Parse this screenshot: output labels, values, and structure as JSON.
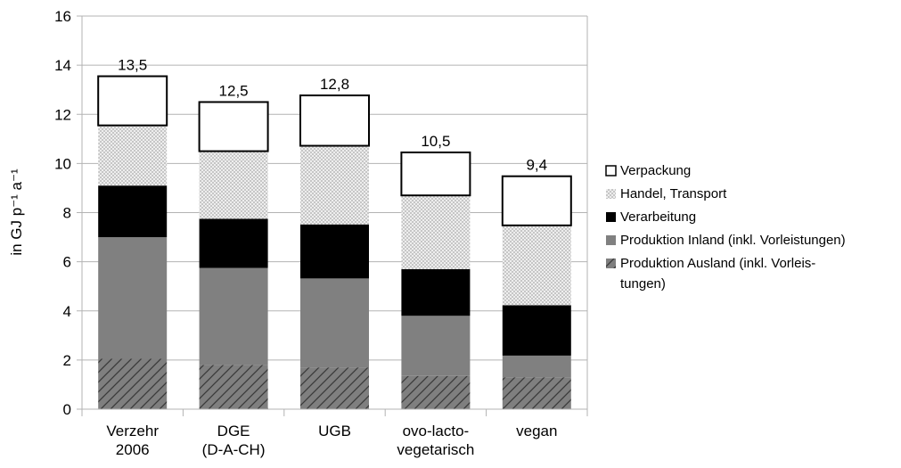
{
  "chart_data": {
    "type": "bar",
    "stacked": true,
    "title": "",
    "xlabel": "",
    "ylabel": "in GJ p⁻¹ a⁻¹",
    "ylim": [
      0,
      16
    ],
    "yticks": [
      "0",
      "2",
      "4",
      "6",
      "8",
      "10",
      "12",
      "14",
      "16"
    ],
    "grid": true,
    "legend_position": "right",
    "categories": [
      [
        "Verzehr",
        "2006"
      ],
      [
        "DGE",
        "(D-A-CH)"
      ],
      [
        "UGB"
      ],
      [
        "ovo-lacto-",
        "vegetarisch"
      ],
      [
        "vegan"
      ]
    ],
    "totals": [
      "13,5",
      "12,5",
      "12,8",
      "10,5",
      "9,4"
    ],
    "series": [
      {
        "name": [
          "Produktion Ausland (inkl. Vorleis-",
          "tungen)"
        ],
        "fill": "hatch",
        "color": "#7f7f7f",
        "values": [
          2.05,
          1.8,
          1.7,
          1.35,
          1.3
        ]
      },
      {
        "name": [
          "Produktion Inland (inkl. Vorleistungen)"
        ],
        "fill": "solid",
        "color": "#808080",
        "values": [
          4.95,
          3.95,
          3.62,
          2.45,
          0.88
        ]
      },
      {
        "name": [
          "Verarbeitung"
        ],
        "fill": "solid",
        "color": "#000000",
        "values": [
          2.1,
          2.0,
          2.2,
          1.9,
          2.05
        ]
      },
      {
        "name": [
          "Handel, Transport"
        ],
        "fill": "dotted",
        "color": "#c8c8c8",
        "values": [
          2.45,
          2.75,
          3.2,
          3.0,
          3.25
        ]
      },
      {
        "name": [
          "Verpackung"
        ],
        "fill": "solid",
        "color": "#ffffff",
        "values": [
          2.0,
          2.0,
          2.05,
          1.75,
          2.0
        ]
      }
    ],
    "legend_order": [
      4,
      3,
      2,
      1,
      0
    ]
  }
}
